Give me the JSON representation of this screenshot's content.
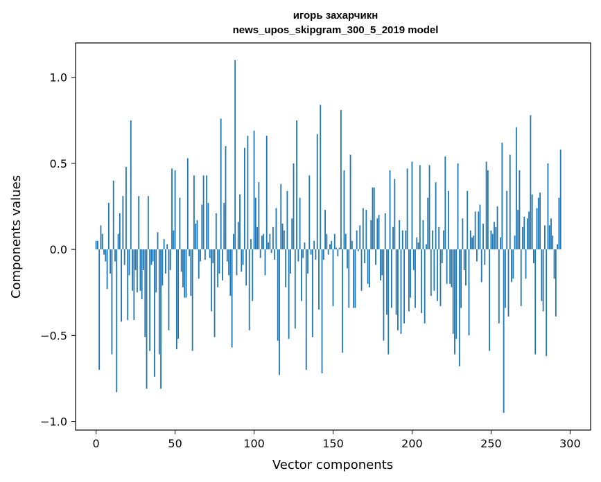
{
  "chart_data": {
    "type": "bar",
    "title": "игорь захарчикн",
    "subtitle": "news_upos_skipgram_300_5_2019 model",
    "xlabel": "Vector components",
    "ylabel": "Components values",
    "xlim": [
      -13,
      313
    ],
    "ylim": [
      -1.05,
      1.2
    ],
    "xticks": [
      0,
      50,
      100,
      150,
      200,
      250,
      300
    ],
    "xtick_labels": [
      "0",
      "50",
      "100",
      "150",
      "200",
      "250",
      "300"
    ],
    "yticks": [
      -1.0,
      -0.5,
      0.0,
      0.5,
      1.0
    ],
    "ytick_labels": [
      "−1.0",
      "−0.5",
      "0.0",
      "0.5",
      "1.0"
    ],
    "grid": false,
    "bar_color": "#1f77b4",
    "values": [
      0.05,
      0.05,
      -0.7,
      0.14,
      0.09,
      -0.03,
      -0.07,
      -0.23,
      0.27,
      -0.14,
      -0.61,
      0.4,
      -0.07,
      -0.83,
      0.09,
      0.21,
      -0.42,
      0.31,
      -0.09,
      0.48,
      -0.41,
      -0.15,
      0.75,
      -0.24,
      -0.41,
      -0.12,
      -0.25,
      0.31,
      -0.24,
      -0.29,
      -0.12,
      -0.51,
      -0.81,
      0.31,
      -0.59,
      -0.09,
      -0.07,
      -0.74,
      -0.25,
      0.1,
      -0.61,
      -0.81,
      -0.21,
      0.06,
      -0.14,
      0.03,
      -0.47,
      -0.12,
      0.47,
      0.11,
      0.46,
      -0.58,
      -0.52,
      0.3,
      -0.13,
      -0.22,
      -0.28,
      -0.28,
      0.53,
      -0.04,
      -0.27,
      -0.59,
      0.43,
      0.15,
      0.17,
      -0.17,
      -0.07,
      0.26,
      0.43,
      -0.06,
      0.43,
      0.27,
      -0.05,
      -0.36,
      -0.08,
      -0.51,
      0.21,
      -0.22,
      -0.14,
      0.76,
      -0.18,
      0.27,
      0.6,
      -0.07,
      -0.15,
      -0.27,
      -0.57,
      0.09,
      1.1,
      -0.15,
      0.16,
      0.32,
      -0.13,
      -0.09,
      0.59,
      -0.21,
      0.66,
      -0.47,
      0.06,
      -0.3,
      0.69,
      0.3,
      0.13,
      0.39,
      -0.05,
      0.08,
      0.09,
      -0.15,
      0.66,
      0.04,
      0.09,
      -0.02,
      0.13,
      -0.06,
      0.24,
      -0.53,
      -0.73,
      0.38,
      0.15,
      0.11,
      -0.22,
      0.34,
      -0.52,
      -0.14,
      0.18,
      0.5,
      -0.46,
      0.75,
      -0.07,
      0.3,
      -0.3,
      -0.05,
      0.04,
      -0.7,
      -0.14,
      0.43,
      -0.03,
      -0.51,
      0.05,
      -0.06,
      0.67,
      -0.35,
      0.84,
      -0.72,
      -0.06,
      0.23,
      0.09,
      -0.03,
      0.03,
      0.05,
      -0.33,
      0.09,
      0.01,
      -0.04,
      0.01,
      0.81,
      -0.6,
      0.46,
      0.09,
      -0.11,
      -0.34,
      0.55,
      0.05,
      -0.34,
      -0.34,
      0.11,
      -0.01,
      0.14,
      -0.24,
      0.24,
      -0.08,
      0.23,
      -0.2,
      -0.22,
      0.17,
      0.36,
      0.36,
      -0.09,
      0.18,
      0.2,
      -0.18,
      -0.15,
      -0.53,
      0.21,
      -0.38,
      -0.61,
      0.46,
      -0.34,
      0.13,
      0.41,
      -0.38,
      -0.47,
      0.17,
      -0.49,
      0.11,
      -0.43,
      0.11,
      0.47,
      -0.36,
      -0.28,
      0.51,
      -0.12,
      -0.34,
      0.07,
      0.04,
      0.49,
      -0.37,
      0.17,
      -0.43,
      0.03,
      0.3,
      0.49,
      -0.27,
      0.11,
      -0.24,
      0.39,
      -0.3,
      0.13,
      -0.33,
      -0.08,
      0.11,
      0.54,
      -0.2,
      0.34,
      -0.2,
      -0.22,
      -0.49,
      -0.61,
      -0.52,
      0.5,
      -0.68,
      -0.34,
      0.18,
      -0.12,
      -0.21,
      0.34,
      -0.5,
      0.11,
      0.07,
      0.08,
      0.22,
      -0.07,
      0.22,
      0.26,
      -0.19,
      0.15,
      -0.09,
      0.51,
      0.46,
      -0.59,
      0.11,
      0.09,
      0.16,
      0.13,
      0.25,
      -0.43,
      0.07,
      0.62,
      -0.95,
      -0.34,
      0.34,
      -0.39,
      0.55,
      -0.19,
      -0.17,
      0.08,
      0.71,
      0.23,
      0.46,
      -0.33,
      0.13,
      0.19,
      -0.17,
      0.18,
      0.22,
      0.78,
      0.32,
      -0.08,
      -0.61,
      0.24,
      0.3,
      0.33,
      -0.3,
      -0.36,
      0.14,
      -0.62,
      0.5,
      0.14,
      0.18,
      0.08,
      -0.17,
      -0.39,
      0.03,
      0.3,
      0.58
    ]
  }
}
